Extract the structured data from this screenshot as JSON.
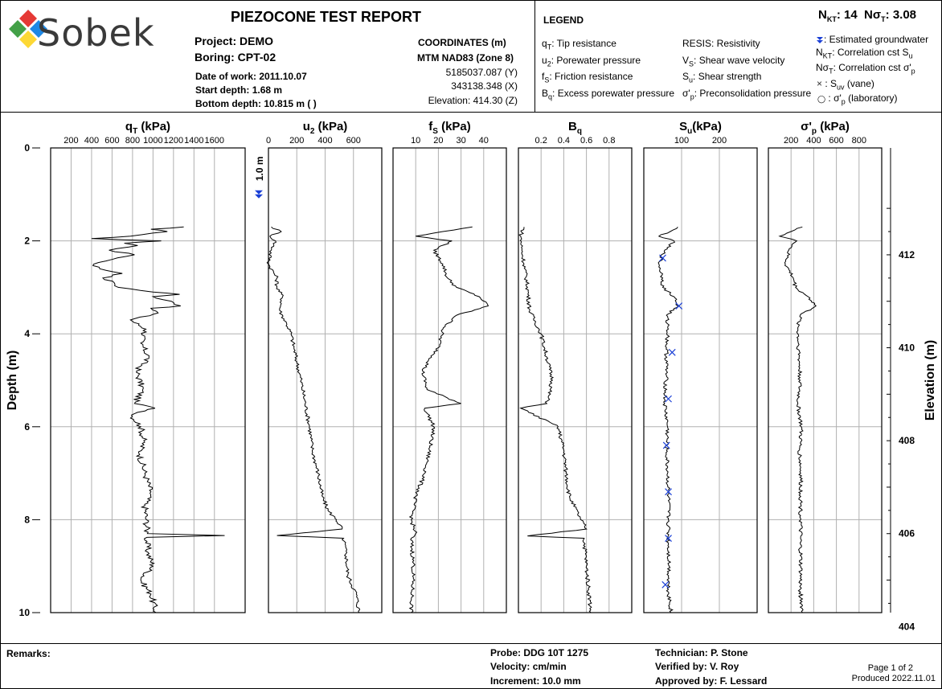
{
  "header": {
    "logo_text": "Sobek",
    "title": "PIEZOCONE TEST REPORT",
    "project_label": "Project:",
    "project": "DEMO",
    "boring_label": "Boring:",
    "boring": "CPT-02",
    "date_label": "Date of work:",
    "date": "2011.10.07",
    "start_label": "Start depth:",
    "start_depth": "1.68  m",
    "bottom_label": "Bottom depth:",
    "bottom_depth": "10.815  m ( )",
    "coords_title": "COORDINATES (m)",
    "coords_system": "MTM NAD83 (Zone 8)",
    "coord_y": "5185037.087 (Y)",
    "coord_x": "343138.348 (X)",
    "elevation": "Elevation: 414.30 (Z)"
  },
  "legend": {
    "title": "LEGEND",
    "qt": "Tip resistance",
    "u2": "Porewater pressure",
    "fs": "Friction resistance",
    "bq": "Excess porewater pressure",
    "resis": "RESIS: Resistivity",
    "vs": "Shear wave velocity",
    "su": "Shear strength",
    "sp": "Preconsolidation pressure",
    "nkt_value": "14",
    "nst_value": "3.08",
    "gw": ": Estimated groundwater",
    "nkt_desc": "Correlation cst S",
    "nst_desc": "Correlation cst σ'",
    "suv": "(vane)",
    "spl": "(laboratory)"
  },
  "footer": {
    "remarks": "Remarks:",
    "probe": "Probe: DDG 10T 1275",
    "velocity": "Velocity:  cm/min",
    "increment": "Increment: 10.0  mm",
    "technician": "Technician: P. Stone",
    "verified": "Verified by: V. Roy",
    "approved": "Approved by: F. Lessard",
    "page": "Page 1 of 2",
    "produced": "Produced 2022.11.01"
  },
  "colors": {
    "groundwater": "#1a3fd6",
    "vane": "#1a3fd6",
    "grid": "#b0b0b0"
  },
  "chart_data": {
    "type": "line",
    "depth_label": "Depth (m)",
    "elevation_label": "Elevation (m)",
    "depth_range": [
      0,
      10
    ],
    "depth_ticks": [
      0,
      2,
      4,
      6,
      8,
      10
    ],
    "elevation_ticks": [
      412,
      410,
      408,
      406,
      404
    ],
    "surface_elevation": 414.3,
    "groundwater": {
      "depth": 1.0,
      "label": "1.0 m"
    },
    "panels": [
      {
        "key": "qt",
        "title": "q",
        "sub": "T",
        "unit": " (kPa)",
        "xlim": [
          0,
          1900
        ],
        "ticks": [
          200,
          400,
          600,
          800,
          1000,
          1200,
          1400,
          1600
        ],
        "profile": [
          [
            1.7,
            1300
          ],
          [
            1.75,
            980
          ],
          [
            1.8,
            1140
          ],
          [
            1.9,
            780
          ],
          [
            1.95,
            400
          ],
          [
            2.0,
            1080
          ],
          [
            2.05,
            720
          ],
          [
            2.1,
            850
          ],
          [
            2.2,
            570
          ],
          [
            2.3,
            820
          ],
          [
            2.4,
            600
          ],
          [
            2.5,
            420
          ],
          [
            2.6,
            480
          ],
          [
            2.7,
            700
          ],
          [
            2.8,
            510
          ],
          [
            2.9,
            620
          ],
          [
            3.0,
            660
          ],
          [
            3.1,
            1000
          ],
          [
            3.15,
            1260
          ],
          [
            3.2,
            1000
          ],
          [
            3.3,
            1180
          ],
          [
            3.4,
            1270
          ],
          [
            3.45,
            980
          ],
          [
            3.55,
            1050
          ],
          [
            3.7,
            780
          ],
          [
            3.9,
            930
          ],
          [
            4.2,
            880
          ],
          [
            4.5,
            960
          ],
          [
            4.8,
            840
          ],
          [
            5.2,
            900
          ],
          [
            5.5,
            820
          ],
          [
            5.6,
            1020
          ],
          [
            5.75,
            790
          ],
          [
            6.0,
            880
          ],
          [
            6.3,
            910
          ],
          [
            6.6,
            870
          ],
          [
            7.0,
            920
          ],
          [
            7.4,
            980
          ],
          [
            7.7,
            920
          ],
          [
            8.0,
            935
          ],
          [
            8.3,
            945
          ],
          [
            8.34,
            1700
          ],
          [
            8.38,
            940
          ],
          [
            8.7,
            950
          ],
          [
            9.0,
            1000
          ],
          [
            9.3,
            880
          ],
          [
            9.6,
            980
          ],
          [
            10.0,
            1030
          ]
        ]
      },
      {
        "key": "u2",
        "title": "u",
        "sub": "2",
        "unit": " (kPa)",
        "xlim": [
          0,
          800
        ],
        "ticks": [
          0,
          200,
          400,
          600
        ],
        "profile": [
          [
            1.7,
            20
          ],
          [
            1.8,
            90
          ],
          [
            1.9,
            10
          ],
          [
            2.0,
            50
          ],
          [
            2.2,
            20
          ],
          [
            2.5,
            0
          ],
          [
            2.8,
            60
          ],
          [
            3.0,
            60
          ],
          [
            3.2,
            100
          ],
          [
            3.5,
            80
          ],
          [
            3.8,
            130
          ],
          [
            4.0,
            160
          ],
          [
            4.3,
            180
          ],
          [
            4.6,
            200
          ],
          [
            5.0,
            230
          ],
          [
            5.5,
            260
          ],
          [
            6.0,
            290
          ],
          [
            6.5,
            310
          ],
          [
            7.0,
            350
          ],
          [
            7.5,
            380
          ],
          [
            7.8,
            420
          ],
          [
            8.0,
            480
          ],
          [
            8.2,
            520
          ],
          [
            8.34,
            60
          ],
          [
            8.4,
            530
          ],
          [
            8.8,
            550
          ],
          [
            9.2,
            560
          ],
          [
            9.6,
            620
          ],
          [
            10.0,
            640
          ]
        ]
      },
      {
        "key": "fs",
        "title": "f",
        "sub": "S",
        "unit": " (kPa)",
        "xlim": [
          0,
          50
        ],
        "ticks": [
          10,
          20,
          30,
          40
        ],
        "profile": [
          [
            1.7,
            35
          ],
          [
            1.8,
            22
          ],
          [
            1.9,
            10
          ],
          [
            2.0,
            26
          ],
          [
            2.2,
            18
          ],
          [
            2.5,
            22
          ],
          [
            2.8,
            24
          ],
          [
            3.0,
            28
          ],
          [
            3.2,
            38
          ],
          [
            3.4,
            42
          ],
          [
            3.6,
            28
          ],
          [
            3.9,
            22
          ],
          [
            4.3,
            20
          ],
          [
            4.8,
            13
          ],
          [
            5.2,
            15
          ],
          [
            5.5,
            30
          ],
          [
            5.6,
            14
          ],
          [
            6.0,
            18
          ],
          [
            6.5,
            16
          ],
          [
            7.0,
            14
          ],
          [
            7.5,
            10
          ],
          [
            8.0,
            8
          ],
          [
            8.3,
            10
          ],
          [
            8.4,
            8
          ],
          [
            9.0,
            9
          ],
          [
            10.0,
            8
          ]
        ]
      },
      {
        "key": "bq",
        "title": "B",
        "sub": "q",
        "unit": "",
        "xlim": [
          0,
          1.0
        ],
        "ticks": [
          0.2,
          0.4,
          0.6,
          0.8
        ],
        "profile": [
          [
            1.7,
            0.05
          ],
          [
            1.9,
            0.02
          ],
          [
            2.2,
            0.03
          ],
          [
            2.5,
            0.05
          ],
          [
            3.0,
            0.08
          ],
          [
            3.5,
            0.1
          ],
          [
            4.0,
            0.2
          ],
          [
            4.5,
            0.25
          ],
          [
            5.0,
            0.3
          ],
          [
            5.5,
            0.25
          ],
          [
            5.6,
            0.02
          ],
          [
            6.0,
            0.35
          ],
          [
            6.5,
            0.4
          ],
          [
            7.0,
            0.42
          ],
          [
            7.5,
            0.45
          ],
          [
            8.0,
            0.55
          ],
          [
            8.2,
            0.6
          ],
          [
            8.35,
            0.08
          ],
          [
            8.4,
            0.58
          ],
          [
            9.0,
            0.6
          ],
          [
            9.5,
            0.62
          ],
          [
            10.0,
            0.64
          ]
        ]
      },
      {
        "key": "su",
        "title": "S",
        "sub": "u",
        "unit": "(kPa)",
        "xlim": [
          0,
          300
        ],
        "ticks": [
          100,
          200
        ],
        "profile": [
          [
            1.7,
            90
          ],
          [
            1.8,
            70
          ],
          [
            1.9,
            40
          ],
          [
            2.0,
            80
          ],
          [
            2.2,
            55
          ],
          [
            2.5,
            40
          ],
          [
            2.8,
            50
          ],
          [
            3.0,
            50
          ],
          [
            3.2,
            80
          ],
          [
            3.4,
            90
          ],
          [
            3.6,
            60
          ],
          [
            3.9,
            65
          ],
          [
            4.3,
            60
          ],
          [
            4.8,
            60
          ],
          [
            5.5,
            55
          ],
          [
            6.0,
            63
          ],
          [
            6.5,
            60
          ],
          [
            7.0,
            63
          ],
          [
            7.5,
            65
          ],
          [
            8.0,
            65
          ],
          [
            8.5,
            65
          ],
          [
            9.0,
            67
          ],
          [
            9.5,
            65
          ],
          [
            10.0,
            72
          ]
        ],
        "markers": [
          [
            2.37,
            50
          ],
          [
            3.4,
            93
          ],
          [
            4.4,
            75
          ],
          [
            5.4,
            65
          ],
          [
            6.4,
            60
          ],
          [
            7.4,
            65
          ],
          [
            8.4,
            65
          ],
          [
            9.4,
            57
          ]
        ]
      },
      {
        "key": "sp",
        "title": "σ'",
        "sub": "p",
        "unit": " (kPa)",
        "xlim": [
          0,
          1000
        ],
        "ticks": [
          200,
          400,
          600,
          800
        ],
        "profile": [
          [
            1.7,
            300
          ],
          [
            1.8,
            200
          ],
          [
            1.9,
            100
          ],
          [
            2.0,
            250
          ],
          [
            2.2,
            180
          ],
          [
            2.5,
            150
          ],
          [
            2.8,
            220
          ],
          [
            3.0,
            240
          ],
          [
            3.2,
            350
          ],
          [
            3.4,
            420
          ],
          [
            3.6,
            280
          ],
          [
            3.9,
            260
          ],
          [
            4.5,
            270
          ],
          [
            5.0,
            280
          ],
          [
            5.5,
            260
          ],
          [
            6.0,
            290
          ],
          [
            6.5,
            275
          ],
          [
            7.0,
            285
          ],
          [
            7.5,
            285
          ],
          [
            8.0,
            285
          ],
          [
            8.5,
            280
          ],
          [
            9.0,
            285
          ],
          [
            9.5,
            280
          ],
          [
            10.0,
            300
          ]
        ]
      }
    ]
  }
}
